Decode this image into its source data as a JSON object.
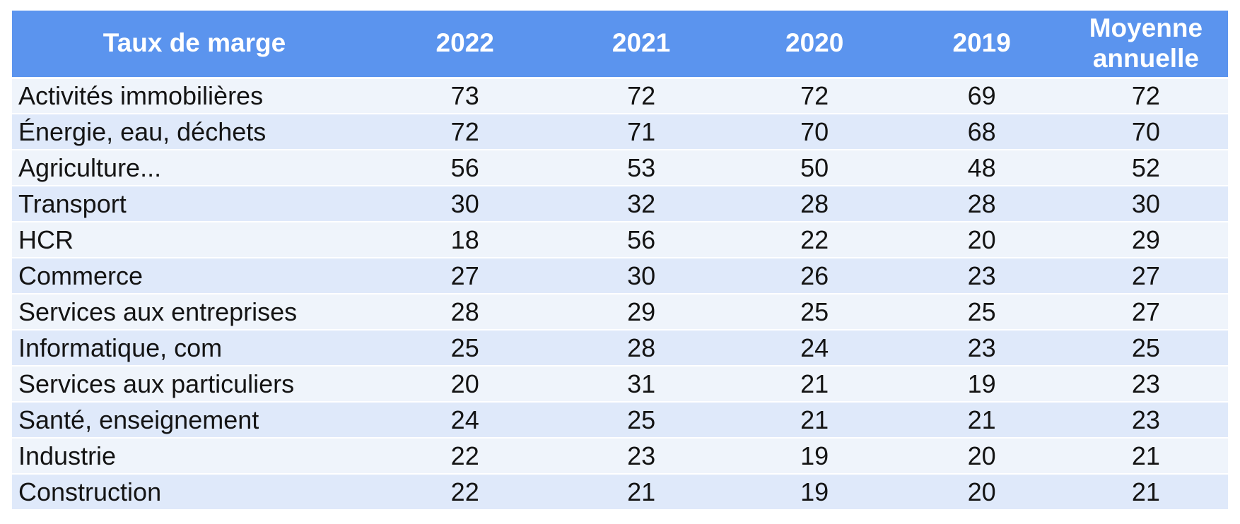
{
  "colors": {
    "header_bg": "#5B94EE",
    "header_text": "#FFFFFF",
    "row_light": "#EFF4FB",
    "row_dark": "#DFE9FA",
    "body_text": "#141414",
    "page_bg": "#FFFFFF"
  },
  "table": {
    "columns": [
      "Taux de marge",
      "2022",
      "2021",
      "2020",
      "2019",
      "Moyenne annuelle"
    ],
    "rows": [
      {
        "label": "Activités immobilières",
        "values": [
          "73",
          "72",
          "72",
          "69",
          "72"
        ]
      },
      {
        "label": "Énergie, eau, déchets",
        "values": [
          "72",
          "71",
          "70",
          "68",
          "70"
        ]
      },
      {
        "label": "Agriculture...",
        "values": [
          "56",
          "53",
          "50",
          "48",
          "52"
        ]
      },
      {
        "label": "Transport",
        "values": [
          "30",
          "32",
          "28",
          "28",
          "30"
        ]
      },
      {
        "label": "HCR",
        "values": [
          "18",
          "56",
          "22",
          "20",
          "29"
        ]
      },
      {
        "label": "Commerce",
        "values": [
          "27",
          "30",
          "26",
          "23",
          "27"
        ]
      },
      {
        "label": "Services aux entreprises",
        "values": [
          "28",
          "29",
          "25",
          "25",
          "27"
        ]
      },
      {
        "label": "Informatique, com",
        "values": [
          "25",
          "28",
          "24",
          "23",
          "25"
        ]
      },
      {
        "label": "Services aux particuliers",
        "values": [
          "20",
          "31",
          "21",
          "19",
          "23"
        ]
      },
      {
        "label": "Santé, enseignement",
        "values": [
          "24",
          "25",
          "21",
          "21",
          "23"
        ]
      },
      {
        "label": "Industrie",
        "values": [
          "22",
          "23",
          "19",
          "20",
          "21"
        ]
      },
      {
        "label": "Construction",
        "values": [
          "22",
          "21",
          "19",
          "20",
          "21"
        ]
      }
    ]
  },
  "chart_data": {
    "type": "table",
    "title": "Taux de marge",
    "columns": [
      "Taux de marge",
      "2022",
      "2021",
      "2020",
      "2019",
      "Moyenne annuelle"
    ],
    "categories": [
      "Activités immobilières",
      "Énergie, eau, déchets",
      "Agriculture...",
      "Transport",
      "HCR",
      "Commerce",
      "Services aux entreprises",
      "Informatique, com",
      "Services aux particuliers",
      "Santé, enseignement",
      "Industrie",
      "Construction"
    ],
    "series": [
      {
        "name": "2022",
        "values": [
          73,
          72,
          56,
          30,
          18,
          27,
          28,
          25,
          20,
          24,
          22,
          22
        ]
      },
      {
        "name": "2021",
        "values": [
          72,
          71,
          53,
          32,
          56,
          30,
          29,
          28,
          31,
          25,
          23,
          21
        ]
      },
      {
        "name": "2020",
        "values": [
          72,
          70,
          50,
          28,
          22,
          26,
          25,
          24,
          21,
          21,
          19,
          19
        ]
      },
      {
        "name": "2019",
        "values": [
          69,
          68,
          48,
          28,
          20,
          23,
          25,
          23,
          19,
          21,
          20,
          20
        ]
      },
      {
        "name": "Moyenne annuelle",
        "values": [
          72,
          70,
          52,
          30,
          29,
          27,
          27,
          25,
          23,
          23,
          21,
          21
        ]
      }
    ]
  }
}
